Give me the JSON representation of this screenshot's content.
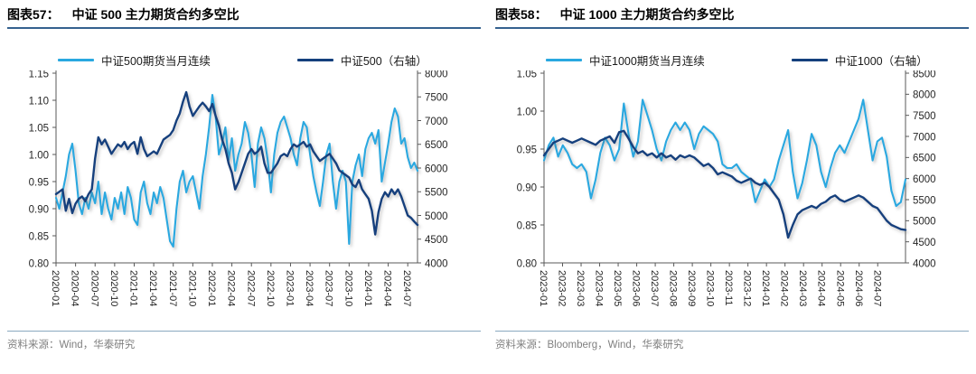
{
  "colors": {
    "light_blue": "#29a8e0",
    "dark_blue": "#14407d",
    "axis_line": "#595959",
    "axis_text": "#262626",
    "title_rule": "#35618f",
    "source_rule": "#8aa9c0",
    "source_text": "#808080"
  },
  "chart_data": [
    {
      "type": "line",
      "fig_label": "图表57：",
      "title": "中证 500 主力期货合约多空比",
      "source": "资料来源：Wind，华泰研究",
      "legend_position": "top",
      "grid": false,
      "x_tick_labels": [
        "2020-01",
        "2020-04",
        "2020-07",
        "2020-10",
        "2021-01",
        "2021-04",
        "2021-07",
        "2021-10",
        "2022-01",
        "2022-04",
        "2022-07",
        "2022-10",
        "2023-01",
        "2023-04",
        "2023-07",
        "2023-10",
        "2024-01",
        "2024-04",
        "2024-07"
      ],
      "x_label_step": 3,
      "x_domain_months": 55.5,
      "left_axis": {
        "min": 0.8,
        "max": 1.15,
        "ticks": [
          "0.80",
          "0.85",
          "0.90",
          "0.95",
          "1.00",
          "1.05",
          "1.10",
          "1.15"
        ]
      },
      "right_axis": {
        "min": 4000,
        "max": 8000,
        "ticks": [
          "4000",
          "4500",
          "5000",
          "5500",
          "6000",
          "6500",
          "7000",
          "7500",
          "8000"
        ]
      },
      "series": [
        {
          "name": "中证500期货当月连续",
          "role": "csi500-futures-ratio-line",
          "axis": "left",
          "color_key": "light_blue",
          "width": 2.1,
          "values": [
            0.92,
            0.9,
            0.93,
            0.96,
            1.0,
            1.02,
            0.97,
            0.91,
            0.89,
            0.92,
            0.9,
            0.93,
            0.91,
            0.95,
            0.89,
            0.93,
            0.9,
            0.88,
            0.92,
            0.9,
            0.93,
            0.89,
            0.94,
            0.92,
            0.88,
            0.87,
            0.93,
            0.95,
            0.91,
            0.89,
            0.93,
            0.91,
            0.94,
            0.92,
            0.88,
            0.84,
            0.83,
            0.9,
            0.95,
            0.97,
            0.93,
            0.95,
            0.96,
            0.93,
            0.9,
            0.96,
            1.0,
            1.05,
            1.11,
            1.07,
            1.0,
            1.02,
            1.05,
            0.99,
            1.03,
            0.97,
            1.0,
            1.02,
            1.06,
            1.04,
            1.0,
            0.94,
            1.02,
            1.05,
            1.03,
            0.99,
            0.93,
            1.0,
            1.04,
            1.06,
            1.07,
            1.05,
            1.03,
            1.0,
            0.98,
            1.03,
            1.06,
            1.05,
            1.0,
            0.96,
            0.93,
            0.905,
            0.95,
            1.0,
            1.02,
            0.95,
            0.9,
            0.95,
            0.97,
            0.95,
            0.835,
            0.95,
            0.98,
            1.0,
            0.96,
            1.01,
            1.03,
            1.04,
            1.02,
            1.045,
            0.95,
            0.985,
            1.02,
            1.06,
            1.085,
            1.07,
            1.02,
            1.03,
            0.995,
            0.975,
            0.985,
            0.97
          ]
        },
        {
          "name": "中证500（右轴）",
          "role": "csi500-index-line",
          "axis": "right",
          "color_key": "dark_blue",
          "width": 2.4,
          "values": [
            5450,
            5500,
            5550,
            5100,
            5350,
            5050,
            5250,
            5350,
            5400,
            5300,
            5450,
            5550,
            6200,
            6650,
            6500,
            6600,
            6450,
            6300,
            6400,
            6500,
            6450,
            6550,
            6400,
            6500,
            6550,
            6300,
            6650,
            6400,
            6250,
            6300,
            6350,
            6300,
            6450,
            6600,
            6650,
            6700,
            6800,
            7000,
            7150,
            7400,
            7600,
            7300,
            7100,
            7200,
            7300,
            7380,
            7300,
            7200,
            7350,
            7100,
            6900,
            6600,
            6400,
            6100,
            5900,
            5550,
            5700,
            5900,
            6100,
            6300,
            6400,
            6300,
            6350,
            6450,
            6100,
            5900,
            5900,
            6000,
            6100,
            6250,
            6300,
            6250,
            6400,
            6500,
            6450,
            6500,
            6550,
            6450,
            6500,
            6350,
            6250,
            6150,
            6200,
            6250,
            6300,
            6200,
            6100,
            5950,
            5900,
            5850,
            5800,
            5650,
            5600,
            5750,
            5550,
            5450,
            5350,
            5100,
            4600,
            5070,
            5350,
            5490,
            5400,
            5550,
            5450,
            5550,
            5400,
            5200,
            5000,
            4950,
            4870,
            4800
          ]
        }
      ]
    },
    {
      "type": "line",
      "fig_label": "图表58：",
      "title": "中证 1000 主力期货合约多空比",
      "source": "资料来源：Bloomberg，Wind，华泰研究",
      "legend_position": "top",
      "grid": false,
      "x_tick_labels": [
        "2023-01",
        "2023-02",
        "2023-03",
        "2023-04",
        "2023-05",
        "2023-06",
        "2023-07",
        "2023-08",
        "2023-09",
        "2023-10",
        "2023-11",
        "2023-12",
        "2024-01",
        "2024-02",
        "2024-03",
        "2024-04",
        "2024-05",
        "2024-06",
        "2024-07"
      ],
      "x_label_step": 1,
      "x_domain_months": 19.5,
      "left_axis": {
        "min": 0.8,
        "max": 1.05,
        "ticks": [
          "0.80",
          "0.85",
          "0.90",
          "0.95",
          "1.00",
          "1.05"
        ]
      },
      "right_axis": {
        "min": 4000,
        "max": 8500,
        "ticks": [
          "4000",
          "4500",
          "5000",
          "5500",
          "6000",
          "6500",
          "7000",
          "7500",
          "8000",
          "8500"
        ]
      },
      "series": [
        {
          "name": "中证1000期货当月连续",
          "role": "csi1000-futures-ratio-line",
          "axis": "left",
          "color_key": "light_blue",
          "width": 2.1,
          "values": [
            0.935,
            0.955,
            0.965,
            0.94,
            0.955,
            0.945,
            0.93,
            0.925,
            0.93,
            0.92,
            0.885,
            0.91,
            0.945,
            0.965,
            0.955,
            0.935,
            0.95,
            1.01,
            0.97,
            0.94,
            0.96,
            1.015,
            0.995,
            0.975,
            0.95,
            0.935,
            0.96,
            0.975,
            0.985,
            0.975,
            0.985,
            0.975,
            0.95,
            0.97,
            0.98,
            0.975,
            0.97,
            0.96,
            0.93,
            0.925,
            0.925,
            0.93,
            0.92,
            0.915,
            0.91,
            0.88,
            0.895,
            0.91,
            0.9,
            0.91,
            0.935,
            0.955,
            0.975,
            0.92,
            0.885,
            0.905,
            0.935,
            0.97,
            0.955,
            0.92,
            0.9,
            0.925,
            0.945,
            0.955,
            0.945,
            0.96,
            0.975,
            0.99,
            1.015,
            0.975,
            0.935,
            0.96,
            0.965,
            0.94,
            0.895,
            0.875,
            0.88,
            0.91
          ]
        },
        {
          "name": "中证1000（右轴）",
          "role": "csi1000-index-line",
          "axis": "right",
          "color_key": "dark_blue",
          "width": 2.4,
          "values": [
            6550,
            6700,
            6850,
            6900,
            6950,
            6900,
            6850,
            6900,
            6950,
            6900,
            6850,
            6800,
            6900,
            6950,
            7000,
            6850,
            7100,
            7130,
            6950,
            6750,
            6600,
            6650,
            6550,
            6600,
            6500,
            6600,
            6500,
            6550,
            6450,
            6550,
            6500,
            6550,
            6500,
            6400,
            6300,
            6350,
            6250,
            6100,
            6150,
            6100,
            6050,
            5950,
            5900,
            5950,
            6000,
            5900,
            5850,
            5900,
            5800,
            5650,
            5500,
            5150,
            4600,
            4900,
            5150,
            5250,
            5300,
            5350,
            5300,
            5400,
            5450,
            5550,
            5600,
            5500,
            5450,
            5500,
            5550,
            5600,
            5550,
            5450,
            5350,
            5300,
            5150,
            5000,
            4900,
            4850,
            4800,
            4780
          ]
        }
      ]
    }
  ]
}
